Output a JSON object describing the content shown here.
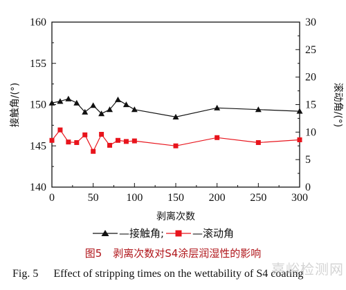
{
  "chart_data": {
    "type": "line",
    "x": [
      0,
      10,
      20,
      30,
      40,
      50,
      60,
      70,
      80,
      90,
      100,
      150,
      200,
      250,
      300
    ],
    "series": [
      {
        "name": "—接触角;",
        "axis": "left",
        "marker": "triangle",
        "color": "#111111",
        "values": [
          150.2,
          150.4,
          150.7,
          150.2,
          149.1,
          149.9,
          148.9,
          149.4,
          150.6,
          150.0,
          149.4,
          148.5,
          149.6,
          149.4,
          149.2
        ]
      },
      {
        "name": "—滚动角",
        "axis": "right",
        "marker": "square",
        "color": "#e8141c",
        "values": [
          8.5,
          10.4,
          8.2,
          8.1,
          9.5,
          6.5,
          9.6,
          7.6,
          8.5,
          8.3,
          8.4,
          7.5,
          9.0,
          8.1,
          8.6
        ]
      }
    ],
    "xlabel": "剥离次数",
    "ylabel_left": "接触角/(°)",
    "ylabel_right": "滚动角/(°)",
    "xlim": [
      0,
      300
    ],
    "ylim_left": [
      140,
      160
    ],
    "ylim_right": [
      0,
      30
    ],
    "xticks": [
      "0",
      "50",
      "100",
      "150",
      "200",
      "250",
      "300"
    ],
    "yticks_left": [
      "140",
      "145",
      "150",
      "155",
      "160"
    ],
    "yticks_right": [
      "0",
      "5",
      "10",
      "15",
      "20",
      "25",
      "30"
    ],
    "grid": false,
    "legend_placement": "bottom"
  },
  "caption": {
    "cn_number": "图5",
    "cn_text": "剥离次数对S4涂层润湿性的影响",
    "en_number": "Fig. 5",
    "en_text": "Effect of stripping times on the wettability of S4 coating"
  },
  "watermark": "嘉峪检测网"
}
